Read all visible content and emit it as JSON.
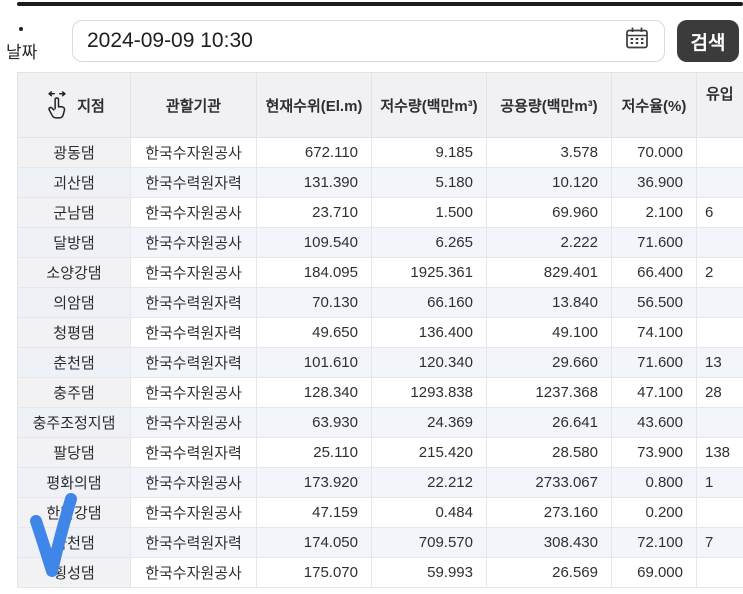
{
  "toolbar": {
    "bullet": "",
    "date_label": "날짜",
    "date_value": "2024-09-09 10:30",
    "search_label": "검색"
  },
  "icons": {
    "calendar": "calendar-icon",
    "swipe_hand": "swipe-horizontal-hand-icon",
    "check_annotation": "blue-checkmark-annotation"
  },
  "colors": {
    "top_line": "#1c1c1e",
    "search_button_bg": "#3b3b3c",
    "search_button_text": "#ffffff",
    "header_bg": "#f1f1f3",
    "name_col_bg": "#f2f2f4",
    "stripe_row_bg": "#f2f6fa",
    "check_blue": "#3f86e8"
  },
  "table": {
    "columns": [
      "지점",
      "관할기관",
      "현재수위(El.m)",
      "저수량(백만m³)",
      "공용량(백만m³)",
      "저수율(%)",
      "유입"
    ],
    "rows": [
      {
        "site": "광동댐",
        "agency": "한국수자원공사",
        "level_elm": "672.110",
        "storage_mcm": "9.185",
        "capacity_mcm": "3.578",
        "rate_pct": "70.000",
        "inflow_visible": ""
      },
      {
        "site": "괴산댐",
        "agency": "한국수력원자력",
        "level_elm": "131.390",
        "storage_mcm": "5.180",
        "capacity_mcm": "10.120",
        "rate_pct": "36.900",
        "inflow_visible": ""
      },
      {
        "site": "군남댐",
        "agency": "한국수자원공사",
        "level_elm": "23.710",
        "storage_mcm": "1.500",
        "capacity_mcm": "69.960",
        "rate_pct": "2.100",
        "inflow_visible": "6"
      },
      {
        "site": "달방댐",
        "agency": "한국수자원공사",
        "level_elm": "109.540",
        "storage_mcm": "6.265",
        "capacity_mcm": "2.222",
        "rate_pct": "71.600",
        "inflow_visible": ""
      },
      {
        "site": "소양강댐",
        "agency": "한국수자원공사",
        "level_elm": "184.095",
        "storage_mcm": "1925.361",
        "capacity_mcm": "829.401",
        "rate_pct": "66.400",
        "inflow_visible": "2"
      },
      {
        "site": "의암댐",
        "agency": "한국수력원자력",
        "level_elm": "70.130",
        "storage_mcm": "66.160",
        "capacity_mcm": "13.840",
        "rate_pct": "56.500",
        "inflow_visible": ""
      },
      {
        "site": "청평댐",
        "agency": "한국수력원자력",
        "level_elm": "49.650",
        "storage_mcm": "136.400",
        "capacity_mcm": "49.100",
        "rate_pct": "74.100",
        "inflow_visible": ""
      },
      {
        "site": "춘천댐",
        "agency": "한국수력원자력",
        "level_elm": "101.610",
        "storage_mcm": "120.340",
        "capacity_mcm": "29.660",
        "rate_pct": "71.600",
        "inflow_visible": "13"
      },
      {
        "site": "충주댐",
        "agency": "한국수자원공사",
        "level_elm": "128.340",
        "storage_mcm": "1293.838",
        "capacity_mcm": "1237.368",
        "rate_pct": "47.100",
        "inflow_visible": "28"
      },
      {
        "site": "충주조정지댐",
        "agency": "한국수자원공사",
        "level_elm": "63.930",
        "storage_mcm": "24.369",
        "capacity_mcm": "26.641",
        "rate_pct": "43.600",
        "inflow_visible": ""
      },
      {
        "site": "팔당댐",
        "agency": "한국수력원자력",
        "level_elm": "25.110",
        "storage_mcm": "215.420",
        "capacity_mcm": "28.580",
        "rate_pct": "73.900",
        "inflow_visible": "138"
      },
      {
        "site": "평화의댐",
        "agency": "한국수자원공사",
        "level_elm": "173.920",
        "storage_mcm": "22.212",
        "capacity_mcm": "2733.067",
        "rate_pct": "0.800",
        "inflow_visible": "1"
      },
      {
        "site": "한탄강댐",
        "agency": "한국수자원공사",
        "level_elm": "47.159",
        "storage_mcm": "0.484",
        "capacity_mcm": "273.160",
        "rate_pct": "0.200",
        "inflow_visible": ""
      },
      {
        "site": "화천댐",
        "agency": "한국수력원자력",
        "level_elm": "174.050",
        "storage_mcm": "709.570",
        "capacity_mcm": "308.430",
        "rate_pct": "72.100",
        "inflow_visible": "7"
      },
      {
        "site": "횡성댐",
        "agency": "한국수자원공사",
        "level_elm": "175.070",
        "storage_mcm": "59.993",
        "capacity_mcm": "26.569",
        "rate_pct": "69.000",
        "inflow_visible": ""
      }
    ]
  }
}
